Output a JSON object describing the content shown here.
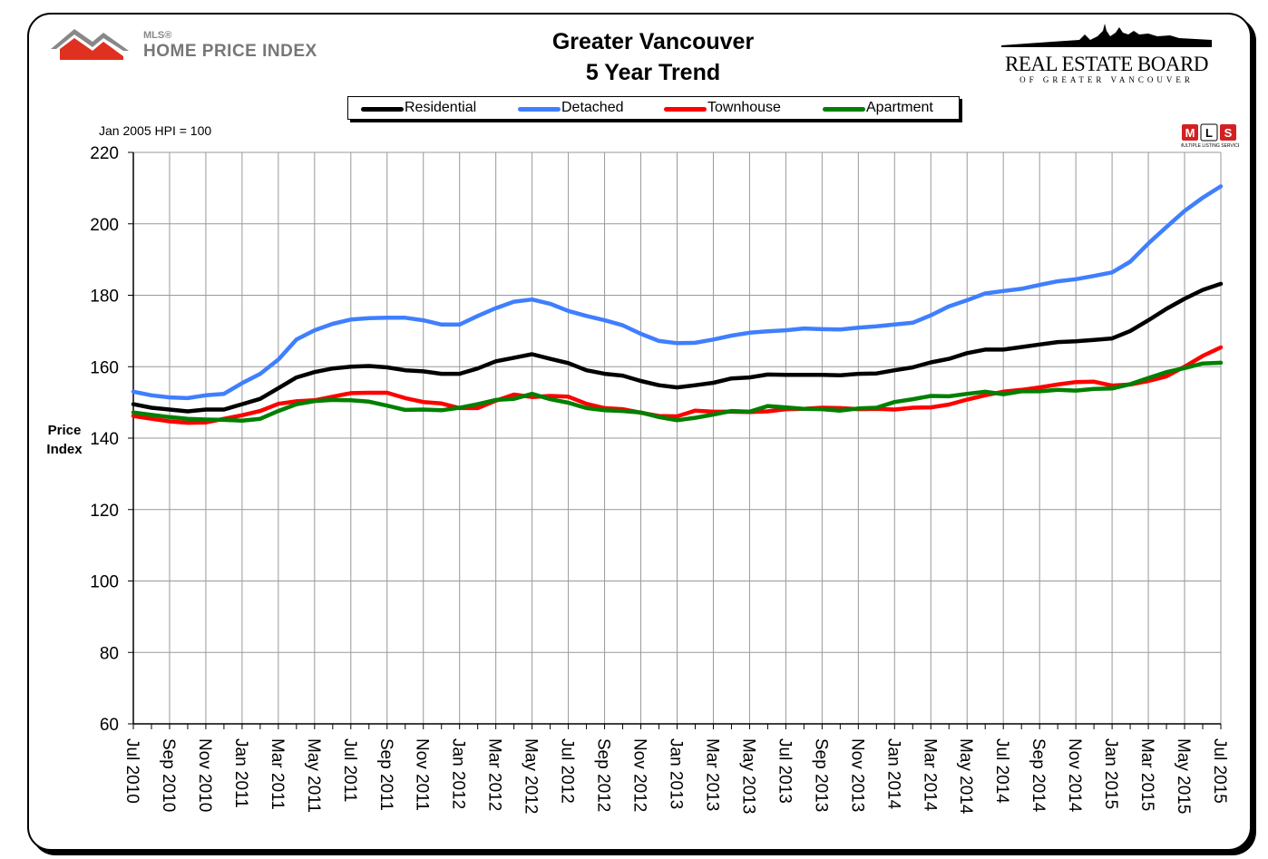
{
  "header": {
    "title_line1": "Greater Vancouver",
    "title_line2": "5 Year Trend",
    "mls_small": "MLS®",
    "mls_big": "HOME PRICE INDEX",
    "board_title": "REAL ESTATE BOARD",
    "board_sub": "OF GREATER VANCOUVER",
    "mls_badge_text": "MLS",
    "mls_badge_sub": "MULTIPLE LISTING SERVICE"
  },
  "base_note": "Jan 2005 HPI = 100",
  "chart_data": {
    "type": "line",
    "title": "Greater Vancouver 5 Year Trend",
    "ylabel": "Price Index",
    "ylabel_lines": [
      "Price",
      "Index"
    ],
    "xlabel": "",
    "ylim": [
      60,
      220
    ],
    "yticks": [
      60,
      80,
      100,
      120,
      140,
      160,
      180,
      200,
      220
    ],
    "grid": true,
    "legend_position": "top",
    "x": [
      "Jul 2010",
      "Aug 2010",
      "Sep 2010",
      "Oct 2010",
      "Nov 2010",
      "Dec 2010",
      "Jan 2011",
      "Feb 2011",
      "Mar 2011",
      "Apr 2011",
      "May 2011",
      "Jun 2011",
      "Jul 2011",
      "Aug 2011",
      "Sep 2011",
      "Oct 2011",
      "Nov 2011",
      "Dec 2011",
      "Jan 2012",
      "Feb 2012",
      "Mar 2012",
      "Apr 2012",
      "May 2012",
      "Jun 2012",
      "Jul 2012",
      "Aug 2012",
      "Sep 2012",
      "Oct 2012",
      "Nov 2012",
      "Dec 2012",
      "Jan 2013",
      "Feb 2013",
      "Mar 2013",
      "Apr 2013",
      "May 2013",
      "Jun 2013",
      "Jul 2013",
      "Aug 2013",
      "Sep 2013",
      "Oct 2013",
      "Nov 2013",
      "Dec 2013",
      "Jan 2014",
      "Feb 2014",
      "Mar 2014",
      "Apr 2014",
      "May 2014",
      "Jun 2014",
      "Jul 2014",
      "Aug 2014",
      "Sep 2014",
      "Oct 2014",
      "Nov 2014",
      "Dec 2014",
      "Jan 2015",
      "Feb 2015",
      "Mar 2015",
      "Apr 2015",
      "May 2015",
      "Jun 2015",
      "Jul 2015"
    ],
    "x_tick_labels": [
      "Jul 2010",
      "Sep 2010",
      "Nov 2010",
      "Jan 2011",
      "Mar 2011",
      "May 2011",
      "Jul 2011",
      "Sep 2011",
      "Nov 2011",
      "Jan 2012",
      "Mar 2012",
      "May 2012",
      "Jul 2012",
      "Sep 2012",
      "Nov 2012",
      "Jan 2013",
      "Mar 2013",
      "May 2013",
      "Jul 2013",
      "Sep 2013",
      "Nov 2013",
      "Jan 2014",
      "Mar 2014",
      "May 2014",
      "Jul 2014",
      "Sep 2014",
      "Nov 2014",
      "Jan 2015",
      "Mar 2015",
      "May 2015",
      "Jul 2015"
    ],
    "series": [
      {
        "name": "Residential",
        "color": "#000000",
        "values": [
          149.5,
          148.5,
          148,
          147.5,
          148,
          148,
          149.5,
          151,
          154,
          157,
          158.5,
          159.5,
          160,
          160.2,
          159.8,
          159,
          158.7,
          158,
          158,
          159.5,
          161.5,
          162.5,
          163.5,
          162.2,
          161,
          159,
          158,
          157.5,
          156,
          154.8,
          154.2,
          154.8,
          155.5,
          156.7,
          157,
          157.8,
          157.7,
          157.7,
          157.7,
          157.6,
          158,
          158.1,
          159,
          159.8,
          161.2,
          162.2,
          163.8,
          164.8,
          164.8,
          165.5,
          166.2,
          166.9,
          167.1,
          167.5,
          167.9,
          170,
          173,
          176.2,
          179,
          181.5,
          183.2
        ]
      },
      {
        "name": "Detached",
        "color": "#3f7fff",
        "values": [
          153,
          152,
          151.4,
          151.2,
          152,
          152.4,
          155.4,
          158,
          162,
          167.6,
          170.2,
          172,
          173.2,
          173.6,
          173.7,
          173.7,
          173,
          171.8,
          171.8,
          174.2,
          176.4,
          178.2,
          178.8,
          177.6,
          175.6,
          174.2,
          173,
          171.6,
          169.2,
          167.2,
          166.6,
          166.7,
          167.6,
          168.7,
          169.5,
          169.9,
          170.2,
          170.7,
          170.5,
          170.4,
          170.9,
          171.3,
          171.8,
          172.3,
          174.4,
          176.9,
          178.6,
          180.5,
          181.2,
          181.8,
          182.9,
          183.9,
          184.5,
          185.4,
          186.4,
          189.4,
          194.5,
          199.1,
          203.6,
          207.3,
          210.5
        ]
      },
      {
        "name": "Townhouse",
        "color": "#ff0000",
        "values": [
          146.2,
          145.4,
          144.7,
          144.3,
          144.4,
          145.4,
          146.4,
          147.6,
          149.6,
          150.3,
          150.6,
          151.6,
          152.6,
          152.7,
          152.7,
          151.2,
          150.1,
          149.7,
          148.4,
          148.4,
          150.5,
          152.2,
          151.5,
          151.8,
          151.6,
          149.6,
          148.4,
          148.1,
          147.1,
          146.2,
          146.1,
          147.7,
          147.4,
          147.4,
          147.3,
          147.5,
          148.1,
          148.2,
          148.5,
          148.4,
          148.1,
          148.2,
          148,
          148.5,
          148.6,
          149.4,
          150.8,
          152,
          153,
          153.5,
          154.2,
          155,
          155.7,
          155.8,
          154.7,
          155,
          156,
          157.3,
          160,
          163,
          165.4
        ]
      },
      {
        "name": "Apartment",
        "color": "#008000",
        "values": [
          147.2,
          146.5,
          145.9,
          145.4,
          145.2,
          145.1,
          144.9,
          145.4,
          147.6,
          149.5,
          150.4,
          150.7,
          150.6,
          150.2,
          149.1,
          147.9,
          148,
          147.8,
          148.5,
          149.5,
          150.7,
          151,
          152.4,
          150.9,
          149.9,
          148.4,
          147.8,
          147.6,
          147.2,
          145.9,
          145,
          145.7,
          146.6,
          147.6,
          147.4,
          149,
          148.6,
          148.2,
          148.1,
          147.7,
          148.3,
          148.5,
          150.1,
          150.9,
          151.8,
          151.7,
          152.4,
          153,
          152.3,
          153.1,
          153.1,
          153.5,
          153.3,
          153.8,
          153.9,
          155.1,
          156.8,
          158.5,
          159.6,
          160.9,
          161.1
        ]
      }
    ]
  }
}
